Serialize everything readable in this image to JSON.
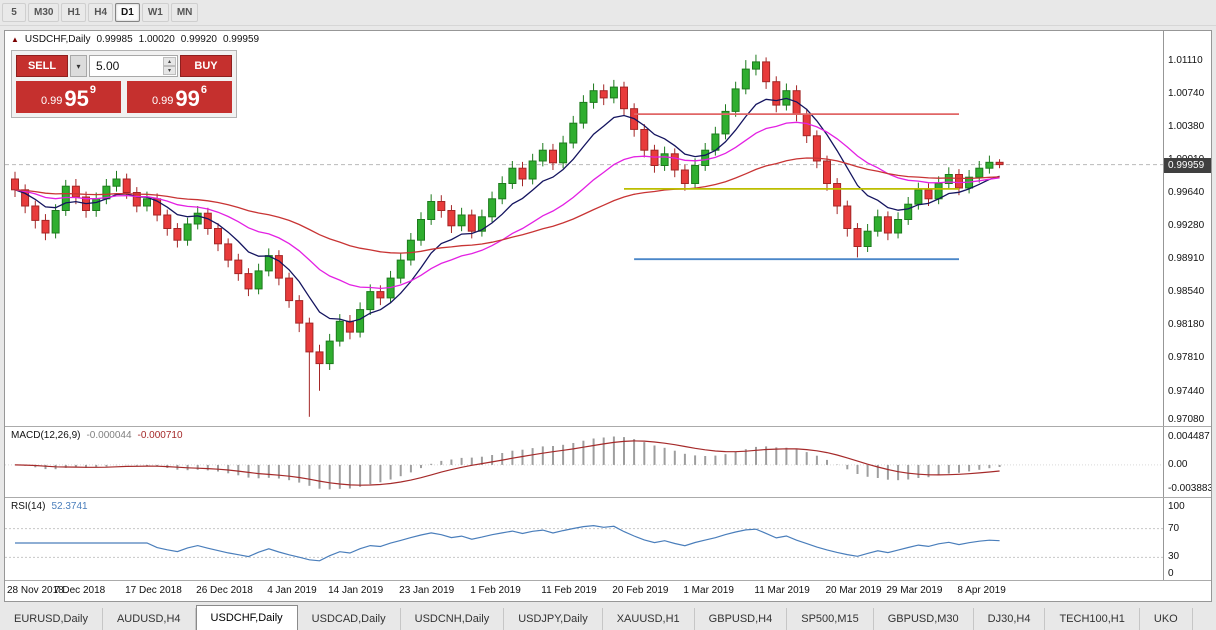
{
  "toolbar": {
    "timeframes": [
      {
        "label": "5",
        "active": false
      },
      {
        "label": "M30",
        "active": false
      },
      {
        "label": "H1",
        "active": false
      },
      {
        "label": "H4",
        "active": false
      },
      {
        "label": "D1",
        "active": true
      },
      {
        "label": "W1",
        "active": false
      },
      {
        "label": "MN",
        "active": false
      }
    ]
  },
  "ohlc_bar": {
    "arrow": "▲",
    "symbol": "USDCHF,Daily",
    "open": "0.99985",
    "high": "1.00020",
    "low": "0.99920",
    "close": "0.99959"
  },
  "trade_panel": {
    "sell_label": "SELL",
    "buy_label": "BUY",
    "volume": "5.00",
    "sell_price": {
      "prefix": "0.99",
      "big": "95",
      "sup": "9"
    },
    "buy_price": {
      "prefix": "0.99",
      "big": "99",
      "sup": "6"
    }
  },
  "price_axis": {
    "labels": [
      "1.01110",
      "1.00740",
      "1.00380",
      "1.00010",
      "0.99640",
      "0.99280",
      "0.98910",
      "0.98540",
      "0.98180",
      "0.97810",
      "0.97440",
      "0.97080"
    ],
    "current": "0.99959"
  },
  "chart_data": {
    "type": "candlestick",
    "symbol": "USDCHF",
    "timeframe": "Daily",
    "colors": {
      "up": "#2fae2f",
      "up_stroke": "#1d7a1d",
      "down": "#e83b3b",
      "down_stroke": "#a32626",
      "bid_line": "#b9b9b9",
      "macd_hist": "#9e9e9e",
      "macd_signal": "#a52a2a",
      "rsi_line": "#4a7ebb"
    },
    "x_labels": [
      {
        "text": "28 Nov 2018",
        "bar": 0
      },
      {
        "text": "7 Dec 2018",
        "bar": 7
      },
      {
        "text": "17 Dec 2018",
        "bar": 14
      },
      {
        "text": "26 Dec 2018",
        "bar": 21
      },
      {
        "text": "4 Jan 2019",
        "bar": 28
      },
      {
        "text": "14 Jan 2019",
        "bar": 34
      },
      {
        "text": "23 Jan 2019",
        "bar": 41
      },
      {
        "text": "1 Feb 2019",
        "bar": 48
      },
      {
        "text": "11 Feb 2019",
        "bar": 55
      },
      {
        "text": "20 Feb 2019",
        "bar": 62
      },
      {
        "text": "1 Mar 2019",
        "bar": 69
      },
      {
        "text": "11 Mar 2019",
        "bar": 76
      },
      {
        "text": "20 Mar 2019",
        "bar": 83
      },
      {
        "text": "29 Mar 2019",
        "bar": 89
      },
      {
        "text": "8 Apr 2019",
        "bar": 96
      }
    ],
    "candles": [
      [
        0.998,
        0.9988,
        0.996,
        0.9968
      ],
      [
        0.9968,
        0.9974,
        0.9942,
        0.995
      ],
      [
        0.995,
        0.9956,
        0.9925,
        0.9934
      ],
      [
        0.9934,
        0.9941,
        0.9912,
        0.992
      ],
      [
        0.992,
        0.9952,
        0.9914,
        0.9945
      ],
      [
        0.9945,
        0.9979,
        0.9939,
        0.9972
      ],
      [
        0.9972,
        0.998,
        0.9952,
        0.996
      ],
      [
        0.996,
        0.9966,
        0.9937,
        0.9945
      ],
      [
        0.9945,
        0.9965,
        0.9938,
        0.9958
      ],
      [
        0.9958,
        0.998,
        0.9952,
        0.9972
      ],
      [
        0.9972,
        0.9989,
        0.9966,
        0.998
      ],
      [
        0.998,
        0.9986,
        0.9958,
        0.9965
      ],
      [
        0.9965,
        0.9971,
        0.9943,
        0.995
      ],
      [
        0.995,
        0.9966,
        0.9944,
        0.9958
      ],
      [
        0.9958,
        0.9964,
        0.9933,
        0.994
      ],
      [
        0.994,
        0.9946,
        0.9917,
        0.9925
      ],
      [
        0.9925,
        0.9931,
        0.9904,
        0.9912
      ],
      [
        0.9912,
        0.9937,
        0.9906,
        0.993
      ],
      [
        0.993,
        0.995,
        0.9924,
        0.9942
      ],
      [
        0.9942,
        0.9948,
        0.9918,
        0.9925
      ],
      [
        0.9925,
        0.9931,
        0.99,
        0.9908
      ],
      [
        0.9908,
        0.9914,
        0.9882,
        0.989
      ],
      [
        0.989,
        0.9897,
        0.9867,
        0.9875
      ],
      [
        0.9875,
        0.9881,
        0.985,
        0.9858
      ],
      [
        0.9858,
        0.9886,
        0.9852,
        0.9878
      ],
      [
        0.9878,
        0.9903,
        0.9872,
        0.9895
      ],
      [
        0.9895,
        0.9901,
        0.9862,
        0.987
      ],
      [
        0.987,
        0.9876,
        0.9837,
        0.9845
      ],
      [
        0.9845,
        0.9851,
        0.981,
        0.982
      ],
      [
        0.982,
        0.9826,
        0.9716,
        0.9788
      ],
      [
        0.9788,
        0.9796,
        0.9745,
        0.9775
      ],
      [
        0.9775,
        0.9808,
        0.9768,
        0.98
      ],
      [
        0.98,
        0.983,
        0.9794,
        0.9822
      ],
      [
        0.9822,
        0.9829,
        0.9802,
        0.981
      ],
      [
        0.981,
        0.9843,
        0.9804,
        0.9835
      ],
      [
        0.9835,
        0.9863,
        0.9829,
        0.9855
      ],
      [
        0.9855,
        0.9862,
        0.984,
        0.9848
      ],
      [
        0.9848,
        0.9878,
        0.9842,
        0.987
      ],
      [
        0.987,
        0.9898,
        0.9864,
        0.989
      ],
      [
        0.989,
        0.992,
        0.9884,
        0.9912
      ],
      [
        0.9912,
        0.9943,
        0.9906,
        0.9935
      ],
      [
        0.9935,
        0.9963,
        0.9929,
        0.9955
      ],
      [
        0.9955,
        0.9962,
        0.9937,
        0.9945
      ],
      [
        0.9945,
        0.9951,
        0.992,
        0.9928
      ],
      [
        0.9928,
        0.9948,
        0.9922,
        0.994
      ],
      [
        0.994,
        0.9946,
        0.9914,
        0.9922
      ],
      [
        0.9922,
        0.9946,
        0.9916,
        0.9938
      ],
      [
        0.9938,
        0.9966,
        0.9932,
        0.9958
      ],
      [
        0.9958,
        0.9983,
        0.9952,
        0.9975
      ],
      [
        0.9975,
        1.0,
        0.9969,
        0.9992
      ],
      [
        0.9992,
        0.9999,
        0.9972,
        0.998
      ],
      [
        0.998,
        1.0008,
        0.9974,
        1.0
      ],
      [
        1.0,
        1.002,
        0.9994,
        1.0012
      ],
      [
        1.0012,
        1.0019,
        0.999,
        0.9998
      ],
      [
        0.9998,
        1.0028,
        0.9992,
        1.002
      ],
      [
        1.002,
        1.005,
        1.0014,
        1.0042
      ],
      [
        1.0042,
        1.0073,
        1.0036,
        1.0065
      ],
      [
        1.0065,
        1.0086,
        1.0058,
        1.0078
      ],
      [
        1.0078,
        1.0085,
        1.0062,
        1.007
      ],
      [
        1.007,
        1.009,
        1.0064,
        1.0082
      ],
      [
        1.0082,
        1.0088,
        1.005,
        1.0058
      ],
      [
        1.0058,
        1.0064,
        1.0027,
        1.0035
      ],
      [
        1.0035,
        1.0041,
        1.0004,
        1.0012
      ],
      [
        1.0012,
        1.0018,
        0.9987,
        0.9995
      ],
      [
        0.9995,
        1.0016,
        0.9989,
        1.0008
      ],
      [
        1.0008,
        1.0014,
        0.9982,
        0.999
      ],
      [
        0.999,
        0.9996,
        0.9967,
        0.9975
      ],
      [
        0.9975,
        1.0003,
        0.9969,
        0.9995
      ],
      [
        0.9995,
        1.002,
        0.9989,
        1.0012
      ],
      [
        1.0012,
        1.0038,
        1.0006,
        1.003
      ],
      [
        1.003,
        1.0063,
        1.0024,
        1.0055
      ],
      [
        1.0055,
        1.0088,
        1.0049,
        1.008
      ],
      [
        1.008,
        1.0112,
        1.0074,
        1.0102
      ],
      [
        1.0102,
        1.0118,
        1.0095,
        1.011
      ],
      [
        1.011,
        1.0115,
        1.008,
        1.0088
      ],
      [
        1.0088,
        1.0094,
        1.0054,
        1.0062
      ],
      [
        1.0062,
        1.0086,
        1.0056,
        1.0078
      ],
      [
        1.0078,
        1.0084,
        1.0044,
        1.0052
      ],
      [
        1.0052,
        1.0058,
        1.002,
        1.0028
      ],
      [
        1.0028,
        1.0034,
        0.9992,
        1.0
      ],
      [
        1.0,
        1.0006,
        0.9967,
        0.9975
      ],
      [
        0.9975,
        0.9981,
        0.9941,
        0.995
      ],
      [
        0.995,
        0.9956,
        0.9916,
        0.9925
      ],
      [
        0.9925,
        0.9931,
        0.9893,
        0.9905
      ],
      [
        0.9905,
        0.993,
        0.9899,
        0.9922
      ],
      [
        0.9922,
        0.9946,
        0.9916,
        0.9938
      ],
      [
        0.9938,
        0.9944,
        0.9912,
        0.992
      ],
      [
        0.992,
        0.9943,
        0.9914,
        0.9935
      ],
      [
        0.9935,
        0.996,
        0.9929,
        0.9952
      ],
      [
        0.9952,
        0.9976,
        0.9946,
        0.9968
      ],
      [
        0.9968,
        0.9975,
        0.995,
        0.9958
      ],
      [
        0.9958,
        0.9983,
        0.9952,
        0.9975
      ],
      [
        0.9975,
        0.9993,
        0.9969,
        0.9985
      ],
      [
        0.9985,
        0.9991,
        0.9962,
        0.997
      ],
      [
        0.997,
        0.999,
        0.9964,
        0.9982
      ],
      [
        0.9982,
        1.0,
        0.9976,
        0.9992
      ],
      [
        0.9992,
        1.0006,
        0.9986,
        0.99985
      ],
      [
        0.99985,
        1.0002,
        0.9992,
        0.99959
      ]
    ],
    "overlays": [
      {
        "name": "ma-fast",
        "period": 8,
        "color": "#14145f"
      },
      {
        "name": "ma-mid",
        "period": 21,
        "color": "#e321e3"
      },
      {
        "name": "ma-slow",
        "period": 50,
        "color": "#c83434"
      }
    ],
    "hlines": [
      {
        "name": "resistance-line",
        "price": 1.0052,
        "color": "#e06666",
        "from": 61,
        "to": 93
      },
      {
        "name": "pivot-line",
        "price": 0.9969,
        "color": "#bcbe00",
        "from": 60,
        "to": 93
      },
      {
        "name": "support-line",
        "price": 0.9891,
        "color": "#4a86c8",
        "from": 61,
        "to": 93
      }
    ],
    "macd": {
      "label": "MACD(12,26,9)",
      "value_main": "-0.000044",
      "value_signal": "-0.000710",
      "fast": 12,
      "slow": 26,
      "signal": 9,
      "axis": [
        "0.004487",
        "0.00",
        "-0.003883"
      ]
    },
    "rsi": {
      "label": "RSI(14)",
      "value": "52.3741",
      "period": 14,
      "levels": [
        70,
        30
      ],
      "axis": [
        "100",
        "70",
        "30",
        "0"
      ]
    }
  },
  "tabs": {
    "items": [
      {
        "label": "EURUSD,Daily",
        "active": false
      },
      {
        "label": "AUDUSD,H4",
        "active": false
      },
      {
        "label": "USDCHF,Daily",
        "active": true
      },
      {
        "label": "USDCAD,Daily",
        "active": false
      },
      {
        "label": "USDCNH,Daily",
        "active": false
      },
      {
        "label": "USDJPY,Daily",
        "active": false
      },
      {
        "label": "XAUUSD,H1",
        "active": false
      },
      {
        "label": "GBPUSD,H4",
        "active": false
      },
      {
        "label": "SP500,M15",
        "active": false
      },
      {
        "label": "GBPUSD,M30",
        "active": false
      },
      {
        "label": "DJ30,H4",
        "active": false
      },
      {
        "label": "TECH100,H1",
        "active": false
      },
      {
        "label": "UKO",
        "active": false
      }
    ]
  }
}
